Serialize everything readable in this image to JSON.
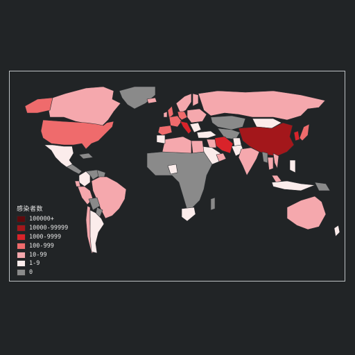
{
  "legend": {
    "title": "感染者数",
    "items": [
      {
        "label": "100000+",
        "color": "#5e0a0d"
      },
      {
        "label": "10000-99999",
        "color": "#a3171b"
      },
      {
        "label": "1000-9999",
        "color": "#d9232a"
      },
      {
        "label": "100-999",
        "color": "#ef6b6c"
      },
      {
        "label": "10-99",
        "color": "#f5a8ad"
      },
      {
        "label": "1-9",
        "color": "#fbeceb"
      },
      {
        "label": "0",
        "color": "#8a8a8a"
      }
    ]
  },
  "countries": [
    {
      "name": "Canada",
      "cls": "10-99"
    },
    {
      "name": "Alaska",
      "cls": "100-999"
    },
    {
      "name": "Greenland",
      "cls": "0"
    },
    {
      "name": "United States",
      "cls": "100-999"
    },
    {
      "name": "Mexico",
      "cls": "1-9"
    },
    {
      "name": "Central America",
      "cls": "0"
    },
    {
      "name": "Cuba",
      "cls": "0"
    },
    {
      "name": "Colombia",
      "cls": "1-9"
    },
    {
      "name": "Venezuela",
      "cls": "0"
    },
    {
      "name": "Guianas",
      "cls": "0"
    },
    {
      "name": "Brazil",
      "cls": "10-99"
    },
    {
      "name": "Peru",
      "cls": "10-99"
    },
    {
      "name": "Ecuador",
      "cls": "10-99"
    },
    {
      "name": "Bolivia",
      "cls": "0"
    },
    {
      "name": "Paraguay",
      "cls": "0"
    },
    {
      "name": "Chile",
      "cls": "10-99"
    },
    {
      "name": "Argentina",
      "cls": "1-9"
    },
    {
      "name": "Iceland",
      "cls": "10-99"
    },
    {
      "name": "United Kingdom",
      "cls": "100-999"
    },
    {
      "name": "Ireland",
      "cls": "10-99"
    },
    {
      "name": "Scandinavia",
      "cls": "10-99"
    },
    {
      "name": "Finland",
      "cls": "10-99"
    },
    {
      "name": "Spain",
      "cls": "100-999"
    },
    {
      "name": "France",
      "cls": "100-999"
    },
    {
      "name": "Germany",
      "cls": "100-999"
    },
    {
      "name": "Italy",
      "cls": "1000-9999"
    },
    {
      "name": "Eastern Europe",
      "cls": "10-99"
    },
    {
      "name": "Balkans",
      "cls": "1-9"
    },
    {
      "name": "Russia",
      "cls": "10-99"
    },
    {
      "name": "Turkey",
      "cls": "1-9"
    },
    {
      "name": "Kazakhstan",
      "cls": "0"
    },
    {
      "name": "Central Asia",
      "cls": "0"
    },
    {
      "name": "Mongolia",
      "cls": "1-9"
    },
    {
      "name": "China",
      "cls": "10000-99999"
    },
    {
      "name": "Korea",
      "cls": "1000-9999"
    },
    {
      "name": "Japan",
      "cls": "100-999"
    },
    {
      "name": "Iran",
      "cls": "1000-9999"
    },
    {
      "name": "Iraq",
      "cls": "10-99"
    },
    {
      "name": "Saudi Arabia",
      "cls": "1-9"
    },
    {
      "name": "Gulf States",
      "cls": "10-99"
    },
    {
      "name": "Afghanistan",
      "cls": "1-9"
    },
    {
      "name": "Pakistan",
      "cls": "1-9"
    },
    {
      "name": "India",
      "cls": "10-99"
    },
    {
      "name": "Myanmar",
      "cls": "0"
    },
    {
      "name": "Thailand",
      "cls": "10-99"
    },
    {
      "name": "Vietnam",
      "cls": "10-99"
    },
    {
      "name": "Malaysia",
      "cls": "10-99"
    },
    {
      "name": "Indonesia",
      "cls": "1-9"
    },
    {
      "name": "Philippines",
      "cls": "1-9"
    },
    {
      "name": "Papua New Guinea",
      "cls": "0"
    },
    {
      "name": "Australia",
      "cls": "10-99"
    },
    {
      "name": "New Zealand",
      "cls": "1-9"
    },
    {
      "name": "North Africa",
      "cls": "10-99"
    },
    {
      "name": "Egypt",
      "cls": "10-99"
    },
    {
      "name": "Morocco",
      "cls": "1-9"
    },
    {
      "name": "Sub-Saharan Africa",
      "cls": "0"
    },
    {
      "name": "Nigeria",
      "cls": "1-9"
    },
    {
      "name": "South Africa",
      "cls": "1-9"
    },
    {
      "name": "Madagascar",
      "cls": "0"
    }
  ]
}
